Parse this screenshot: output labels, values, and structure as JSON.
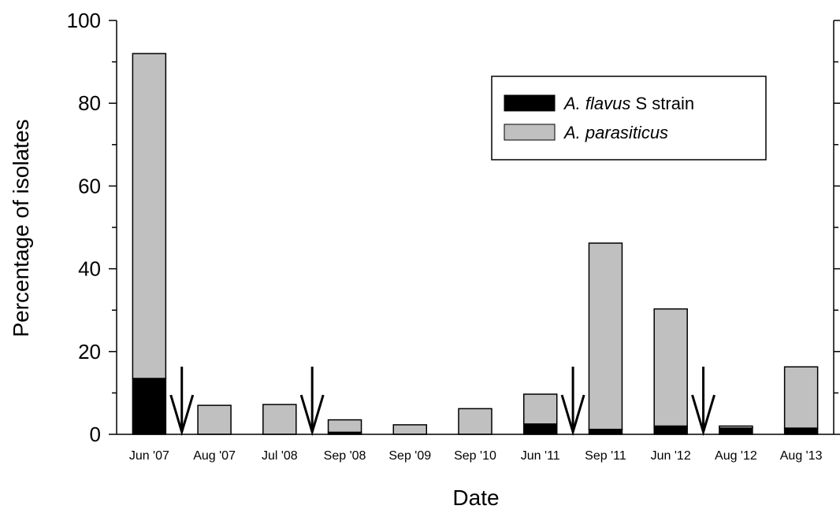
{
  "chart_data": {
    "type": "bar",
    "stacked": true,
    "xlabel": "Date",
    "ylabel": "Percentage of isolates",
    "ylim": [
      0,
      100
    ],
    "yticks": [
      0,
      20,
      40,
      60,
      80,
      100
    ],
    "categories": [
      "Jun '07",
      "Aug '07",
      "Jul '08",
      "Sep '08",
      "Sep '09",
      "Sep '10",
      "Jun '11",
      "Sep '11",
      "Jun '12",
      "Aug '12",
      "Aug '13"
    ],
    "series": [
      {
        "name": "A. flavus S strain",
        "name_italic": "A. flavus",
        "name_rest": " S strain",
        "color": "#000000",
        "values": [
          13.5,
          0,
          0,
          0.5,
          0,
          0,
          2.5,
          1.2,
          2.0,
          1.5,
          1.5
        ]
      },
      {
        "name": "A. parasiticus",
        "name_italic": "A. parasiticus",
        "name_rest": "",
        "color": "#c0c0c0",
        "values": [
          78.5,
          7.0,
          7.2,
          3.0,
          2.3,
          6.2,
          7.2,
          45.0,
          28.3,
          0.5,
          14.8
        ]
      }
    ],
    "arrows_after_category": [
      0,
      2,
      6,
      8
    ],
    "legend_position": "top-right",
    "grid": false
  }
}
